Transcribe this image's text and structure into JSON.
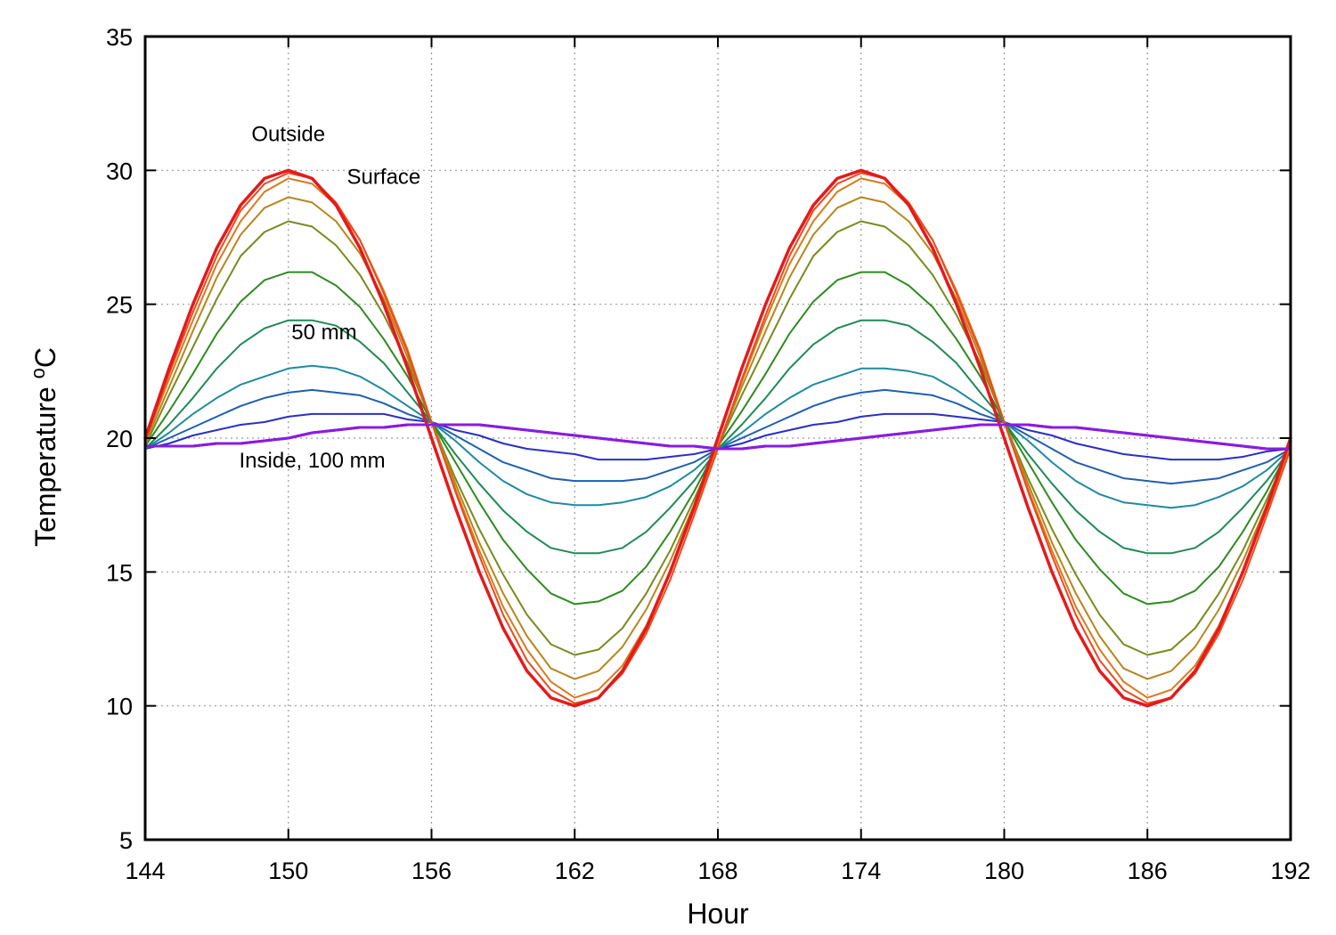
{
  "chart_data": {
    "type": "line",
    "title": "",
    "xlabel": "Hour",
    "ylabel": "Temperature",
    "ylabel_unit": "°C",
    "xlim": [
      144,
      192
    ],
    "ylim": [
      5,
      35
    ],
    "xticks": [
      144,
      150,
      156,
      162,
      168,
      174,
      180,
      186,
      192
    ],
    "yticks": [
      5,
      10,
      15,
      20,
      25,
      30,
      35
    ],
    "grid": true,
    "legend": "none",
    "annotations": [
      {
        "text": "Outside",
        "x": 150,
        "y": 31.1
      },
      {
        "text": "Surface",
        "x": 154,
        "y": 29.5
      },
      {
        "text": "50 mm",
        "x": 151.5,
        "y": 23.7
      },
      {
        "text": "Inside, 100 mm",
        "x": 151,
        "y": 18.9
      }
    ],
    "x": [
      144,
      145,
      146,
      147,
      148,
      149,
      150,
      151,
      152,
      153,
      154,
      155,
      156,
      157,
      158,
      159,
      160,
      161,
      162,
      163,
      164,
      165,
      166,
      167,
      168,
      169,
      170,
      171,
      172,
      173,
      174,
      175,
      176,
      177,
      178,
      179,
      180,
      181,
      182,
      183,
      184,
      185,
      186,
      187,
      188,
      189,
      190,
      191,
      192
    ],
    "series": [
      {
        "color": "#e41a1c",
        "width": 3.5,
        "values": [
          20,
          22.6,
          25,
          27.1,
          28.7,
          29.7,
          30,
          29.7,
          28.7,
          27.1,
          25,
          22.6,
          20,
          17.4,
          15,
          12.9,
          11.3,
          10.3,
          10,
          10.3,
          11.3,
          12.9,
          15,
          17.4,
          20,
          22.6,
          25,
          27.1,
          28.7,
          29.7,
          30,
          29.7,
          28.7,
          27.1,
          25,
          22.6,
          20,
          17.4,
          15,
          12.9,
          11.3,
          10.3,
          10,
          10.3,
          11.3,
          12.9,
          15,
          17.4,
          20
        ]
      },
      {
        "color": "#ee4a1a",
        "width": 2,
        "values": [
          19.9,
          22.4,
          24.7,
          26.8,
          28.5,
          29.5,
          29.9,
          29.7,
          28.8,
          27.4,
          25.4,
          23.2,
          20.6,
          18,
          15.6,
          13.4,
          11.7,
          10.6,
          10.1,
          10.3,
          11.2,
          12.7,
          14.7,
          17.1,
          19.6,
          22.2,
          24.6,
          26.8,
          28.5,
          29.5,
          29.9,
          29.7,
          28.8,
          27.4,
          25.4,
          23.2,
          20.6,
          18,
          15.6,
          13.4,
          11.7,
          10.6,
          10.1,
          10.3,
          11.2,
          12.7,
          14.7,
          17.1,
          19.6
        ]
      },
      {
        "color": "#d97a1c",
        "width": 2,
        "values": [
          19.9,
          22.2,
          24.4,
          26.5,
          28.1,
          29.2,
          29.7,
          29.5,
          28.7,
          27.4,
          25.5,
          23.3,
          20.6,
          18.1,
          15.8,
          13.7,
          12.1,
          10.9,
          10.3,
          10.6,
          11.5,
          13,
          15,
          17.3,
          19.7,
          22.1,
          24.4,
          26.5,
          28.1,
          29.2,
          29.7,
          29.5,
          28.7,
          27.4,
          25.5,
          23.3,
          20.6,
          18.1,
          15.8,
          13.7,
          12.1,
          10.9,
          10.3,
          10.6,
          11.5,
          13,
          15,
          17.3,
          19.7
        ]
      },
      {
        "color": "#b8861b",
        "width": 2,
        "values": [
          19.8,
          21.9,
          24,
          26,
          27.6,
          28.6,
          29,
          28.8,
          28.1,
          26.9,
          25.2,
          23,
          20.6,
          18.3,
          16.1,
          14.2,
          12.6,
          11.4,
          11,
          11.3,
          12.2,
          13.6,
          15.4,
          17.5,
          19.7,
          21.9,
          24,
          26,
          27.6,
          28.6,
          29,
          28.8,
          28.1,
          26.9,
          25.2,
          23,
          20.6,
          18.3,
          16.1,
          14.2,
          12.6,
          11.4,
          11,
          11.3,
          12.2,
          13.6,
          15.4,
          17.5,
          19.7
        ]
      },
      {
        "color": "#7a8a1e",
        "width": 2,
        "values": [
          19.7,
          21.6,
          23.4,
          25.2,
          26.8,
          27.7,
          28.1,
          27.9,
          27.2,
          26.1,
          24.6,
          22.8,
          20.6,
          18.5,
          16.6,
          14.9,
          13.4,
          12.3,
          11.9,
          12.1,
          12.9,
          14.2,
          15.8,
          17.7,
          19.7,
          21.6,
          23.4,
          25.2,
          26.8,
          27.7,
          28.1,
          27.9,
          27.2,
          26.1,
          24.6,
          22.8,
          20.6,
          18.5,
          16.6,
          14.9,
          13.4,
          12.3,
          11.9,
          12.1,
          12.9,
          14.2,
          15.8,
          17.7,
          19.7
        ]
      },
      {
        "color": "#2e8b1f",
        "width": 2,
        "values": [
          19.7,
          21,
          22.4,
          23.9,
          25.1,
          25.9,
          26.2,
          26.2,
          25.7,
          24.9,
          23.7,
          22.3,
          20.6,
          19.1,
          17.6,
          16.2,
          15.1,
          14.2,
          13.8,
          13.9,
          14.3,
          15.2,
          16.5,
          18,
          19.7,
          21,
          22.4,
          23.9,
          25.1,
          25.9,
          26.2,
          26.2,
          25.7,
          24.9,
          23.7,
          22.3,
          20.6,
          19.1,
          17.6,
          16.2,
          15.1,
          14.2,
          13.8,
          13.9,
          14.3,
          15.2,
          16.5,
          18,
          19.7
        ]
      },
      {
        "color": "#1f8a56",
        "width": 2,
        "values": [
          19.6,
          20.5,
          21.5,
          22.6,
          23.5,
          24.1,
          24.4,
          24.4,
          24.2,
          23.6,
          22.8,
          21.7,
          20.6,
          19.4,
          18.3,
          17.3,
          16.5,
          15.9,
          15.7,
          15.7,
          15.9,
          16.5,
          17.4,
          18.4,
          19.6,
          20.5,
          21.5,
          22.6,
          23.5,
          24.1,
          24.4,
          24.4,
          24.2,
          23.6,
          22.8,
          21.7,
          20.6,
          19.4,
          18.3,
          17.3,
          16.5,
          15.9,
          15.7,
          15.7,
          15.9,
          16.5,
          17.4,
          18.4,
          19.6
        ]
      },
      {
        "color": "#1f8aa0",
        "width": 2,
        "values": [
          19.6,
          20.2,
          20.9,
          21.5,
          22,
          22.3,
          22.6,
          22.7,
          22.6,
          22.3,
          21.8,
          21.2,
          20.6,
          19.9,
          19.1,
          18.4,
          17.9,
          17.6,
          17.5,
          17.5,
          17.6,
          17.8,
          18.2,
          18.8,
          19.6,
          20.2,
          20.9,
          21.5,
          22,
          22.3,
          22.6,
          22.6,
          22.5,
          22.3,
          21.8,
          21.2,
          20.6,
          19.9,
          19.1,
          18.4,
          17.9,
          17.6,
          17.5,
          17.4,
          17.5,
          17.8,
          18.2,
          18.8,
          19.6
        ]
      },
      {
        "color": "#1f5fb0",
        "width": 2,
        "values": [
          19.6,
          20,
          20.4,
          20.8,
          21.2,
          21.5,
          21.7,
          21.8,
          21.7,
          21.6,
          21.3,
          20.9,
          20.6,
          20.1,
          19.6,
          19.1,
          18.8,
          18.5,
          18.4,
          18.4,
          18.4,
          18.5,
          18.8,
          19.1,
          19.6,
          20,
          20.4,
          20.8,
          21.2,
          21.5,
          21.7,
          21.8,
          21.7,
          21.6,
          21.3,
          20.9,
          20.6,
          20.1,
          19.6,
          19.1,
          18.8,
          18.5,
          18.4,
          18.3,
          18.4,
          18.5,
          18.8,
          19.1,
          19.6
        ]
      },
      {
        "color": "#2a2fc4",
        "width": 2,
        "values": [
          19.6,
          19.8,
          20.1,
          20.3,
          20.5,
          20.6,
          20.8,
          20.9,
          20.9,
          20.9,
          20.9,
          20.7,
          20.6,
          20.3,
          20.1,
          19.8,
          19.6,
          19.5,
          19.4,
          19.2,
          19.2,
          19.2,
          19.3,
          19.4,
          19.6,
          19.8,
          20.1,
          20.3,
          20.5,
          20.6,
          20.8,
          20.9,
          20.9,
          20.9,
          20.8,
          20.7,
          20.6,
          20.3,
          20.1,
          19.8,
          19.6,
          19.4,
          19.3,
          19.2,
          19.2,
          19.2,
          19.3,
          19.5,
          19.6
        ]
      },
      {
        "color": "#8a1ce0",
        "width": 3,
        "values": [
          19.7,
          19.7,
          19.7,
          19.8,
          19.8,
          19.9,
          20,
          20.2,
          20.3,
          20.4,
          20.4,
          20.5,
          20.5,
          20.5,
          20.5,
          20.4,
          20.3,
          20.2,
          20.1,
          20,
          19.9,
          19.8,
          19.7,
          19.7,
          19.6,
          19.6,
          19.7,
          19.7,
          19.8,
          19.9,
          20,
          20.1,
          20.2,
          20.3,
          20.4,
          20.5,
          20.5,
          20.5,
          20.4,
          20.4,
          20.3,
          20.2,
          20.1,
          20,
          19.9,
          19.8,
          19.7,
          19.6,
          19.6
        ]
      }
    ]
  }
}
